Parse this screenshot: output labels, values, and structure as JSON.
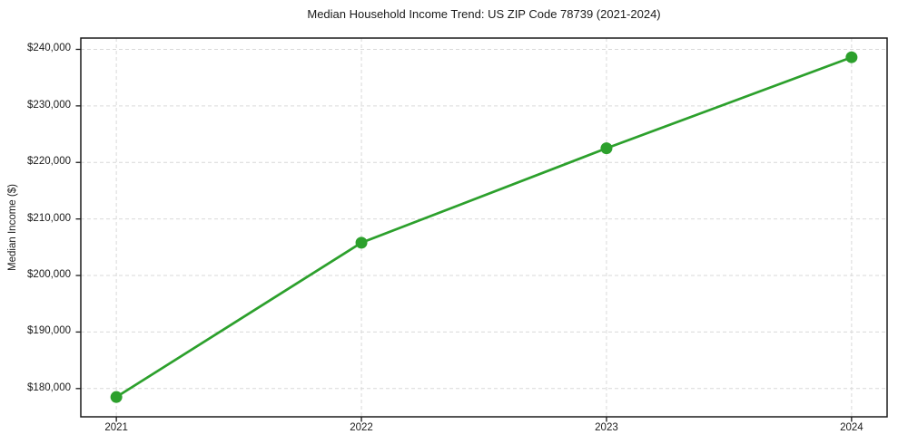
{
  "chart_data": {
    "type": "line",
    "title": "Median Household Income Trend: US ZIP Code 78739 (2021-2024)",
    "xlabel": "",
    "ylabel": "Median Income ($)",
    "x": [
      2021,
      2022,
      2023,
      2024
    ],
    "x_tick_labels": [
      "2021",
      "2022",
      "2023",
      "2024"
    ],
    "series": [
      {
        "name": "Median Household Income",
        "values": [
          178500,
          205800,
          222500,
          238600
        ]
      }
    ],
    "y_ticks": [
      180000,
      190000,
      200000,
      210000,
      220000,
      230000,
      240000
    ],
    "y_tick_labels": [
      "$180,000",
      "$190,000",
      "$200,000",
      "$210,000",
      "$220,000",
      "$230,000",
      "$240,000"
    ],
    "xlim": [
      2020.855,
      2024.145
    ],
    "ylim": [
      175000,
      242000
    ],
    "grid": true,
    "legend_position": "none",
    "colors": {
      "line": "#2ca02c",
      "marker": "#2ca02c",
      "grid": "#d9d9d9",
      "spine": "#1a1a1a",
      "text": "#1a1a1a",
      "background": "#ffffff"
    },
    "style": {
      "line_width": 2.7,
      "marker_radius": 6.5,
      "grid_dash": "4 3"
    }
  }
}
